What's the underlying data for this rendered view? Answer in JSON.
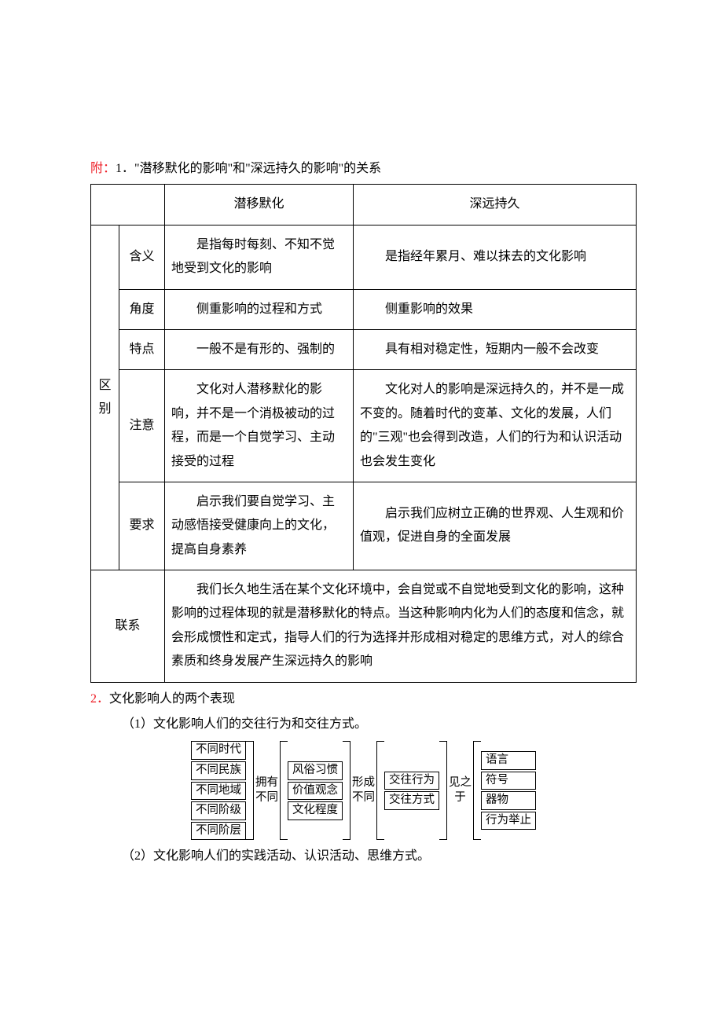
{
  "heading": {
    "prefix": "附：",
    "num": "1．",
    "text": "\"潜移默化的影响\"和\"深远持久的影响\"的关系"
  },
  "table": {
    "head": {
      "c1": "潜移默化",
      "c2": "深远持久"
    },
    "diff_label": "区别",
    "rows": [
      {
        "label": "含义",
        "a": "是指每时每刻、不知不觉地受到文化的影响",
        "b": "是指经年累月、难以抹去的文化影响"
      },
      {
        "label": "角度",
        "a": "侧重影响的过程和方式",
        "b": "侧重影响的效果"
      },
      {
        "label": "特点",
        "a": "一般不是有形的、强制的",
        "b": "具有相对稳定性，短期内一般不会改变"
      },
      {
        "label": "注意",
        "a": "文化对人潜移默化的影响，并不是一个消极被动的过程，而是一个自觉学习、主动接受的过程",
        "b": "文化对人的影响是深远持久的，并不是一成不变的。随着时代的变革、文化的发展，人们的\"三观\"也会得到改造，人们的行为和认识活动也会发生变化"
      },
      {
        "label": "要求",
        "a": "启示我们要自觉学习、主动感悟接受健康向上的文化，提高自身素养",
        "b": "启示我们应树立正确的世界观、人生观和价值观，促进自身的全面发展"
      }
    ],
    "link_label": "联系",
    "link_text": "我们长久地生活在某个文化环境中，会自觉或不自觉地受到文化的影响，这种影响的过程体现的就是潜移默化的特点。当这种影响内化为人们的态度和信念，就会形成惯性和定式，指导人们的行为选择并形成相对稳定的思维方式，对人的综合素质和终身发展产生深远持久的影响"
  },
  "section2": {
    "num": "2．",
    "title": "文化影响人的两个表现",
    "p1": "（1）文化影响人们的交往行为和交往方式。",
    "p2": "（2）文化影响人们的实践活动、认识活动、思维方式。"
  },
  "flow": {
    "g1": [
      "不同时代",
      "不同民族",
      "不同地域",
      "不同阶级",
      "不同阶层"
    ],
    "l1a": "拥有",
    "l1b": "不同",
    "g2": [
      "风俗习惯",
      "价值观念",
      "文化程度"
    ],
    "l2a": "形成",
    "l2b": "不同",
    "g3": [
      "交往行为",
      "交往方式"
    ],
    "l3a": "见之",
    "l3b": "于",
    "g4": [
      "语言",
      "符号",
      "器物",
      "行为举止"
    ]
  }
}
